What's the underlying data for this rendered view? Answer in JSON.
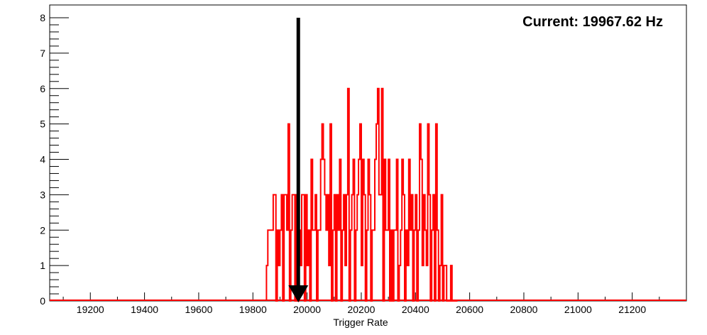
{
  "chart_data": {
    "type": "histogram",
    "title": "",
    "xlabel": "Trigger Rate",
    "ylabel": "",
    "xlim": [
      19050,
      21400
    ],
    "ylim": [
      0,
      8
    ],
    "x_ticks": [
      19200,
      19400,
      19600,
      19800,
      20000,
      20200,
      20400,
      20600,
      20800,
      21000,
      21200
    ],
    "y_ticks": [
      0,
      1,
      2,
      3,
      4,
      5,
      6,
      7,
      8
    ],
    "annotation": "Current: 19967.62 Hz",
    "marker": {
      "x": 19967.62,
      "y_top": 8,
      "y_bottom": 0
    },
    "grid": false,
    "legend": "none",
    "colors": {
      "series": "#ff0000",
      "marker": "#000000",
      "axes": "#000000"
    },
    "series": [
      {
        "bin_width": 5,
        "bin_start": 19850,
        "values": [
          1,
          2,
          2,
          2,
          2,
          3,
          3,
          0,
          2,
          1,
          2,
          3,
          0,
          3,
          3,
          2,
          5,
          0,
          2,
          3,
          3,
          0,
          3,
          0,
          2,
          1,
          3,
          3,
          0,
          3,
          1,
          2,
          0,
          4,
          2,
          2,
          3,
          0,
          2,
          2,
          4,
          5,
          4,
          3,
          2,
          3,
          1,
          5,
          0,
          2,
          3,
          0,
          3,
          2,
          4,
          0,
          2,
          3,
          1,
          3,
          6,
          0,
          2,
          3,
          4,
          0,
          2,
          3,
          4,
          5,
          1,
          4,
          3,
          0,
          2,
          4,
          3,
          0,
          2,
          2,
          4,
          5,
          6,
          3,
          3,
          6,
          0,
          4,
          2,
          2,
          4,
          0,
          2,
          0,
          2,
          2,
          4,
          0,
          1,
          2,
          4,
          3,
          0,
          2,
          1,
          4,
          2,
          3,
          0,
          2,
          3,
          0,
          2,
          5,
          4,
          1,
          3,
          2,
          1,
          5,
          3,
          0,
          2,
          3,
          0,
          5,
          2,
          0,
          1,
          3,
          0,
          1,
          1,
          0,
          0,
          0,
          1,
          0,
          0,
          0,
          0
        ]
      }
    ]
  }
}
